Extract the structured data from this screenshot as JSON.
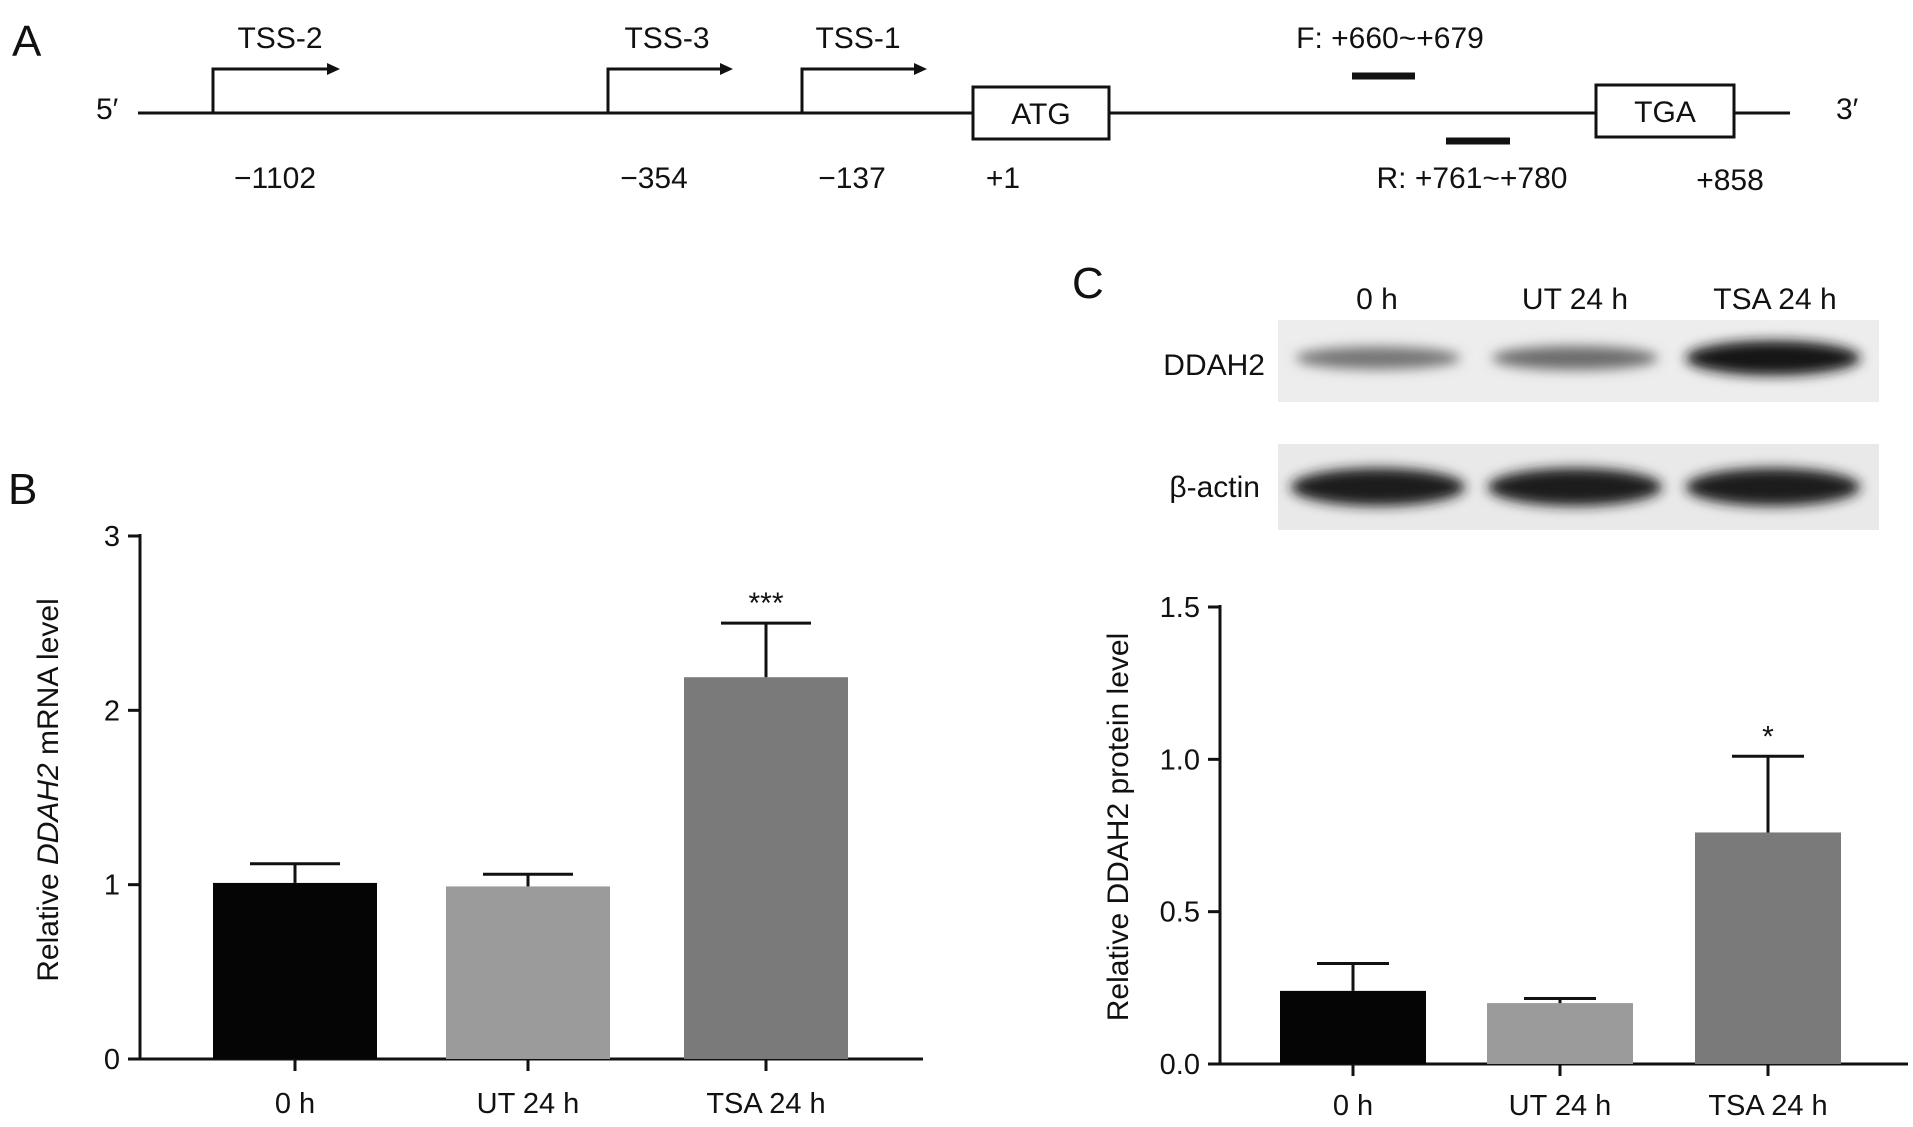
{
  "panels": {
    "a": {
      "letter": "A"
    },
    "b": {
      "letter": "B"
    },
    "c": {
      "letter": "C"
    }
  },
  "gene_map": {
    "end5": "5′",
    "end3": "3′",
    "tss": [
      {
        "label": "TSS-2",
        "position": "−1102"
      },
      {
        "label": "TSS-3",
        "position": "−354"
      },
      {
        "label": "TSS-1",
        "position": "−137"
      }
    ],
    "start_codon": {
      "label": "ATG",
      "position": "+1"
    },
    "stop_codon": {
      "label": "TGA",
      "position": "+858"
    },
    "forward_primer": "F: +660~+679",
    "reverse_primer": "R: +761~+780"
  },
  "western_blot": {
    "lanes": [
      "0 h",
      "UT 24 h",
      "TSA 24 h"
    ],
    "rows": [
      {
        "protein": "DDAH2",
        "band_intensity": [
          0.45,
          0.5,
          0.95
        ]
      },
      {
        "protein": "β-actin",
        "band_intensity": [
          0.92,
          0.92,
          0.93
        ]
      }
    ]
  },
  "colors": {
    "bar_0h": "#050505",
    "bar_ut": "#9b9b9b",
    "bar_tsa": "#7a7a7a",
    "axis": "#111111"
  },
  "chart_data": [
    {
      "id": "B",
      "type": "bar",
      "categories": [
        "0 h",
        "UT 24 h",
        "TSA 24 h"
      ],
      "values": [
        1.01,
        0.99,
        2.19
      ],
      "errors": [
        0.11,
        0.07,
        0.31
      ],
      "significance": [
        "",
        "",
        "***"
      ],
      "ylabel": {
        "prefix": "Relative ",
        "gene": "DDAH2",
        "suffix": " mRNA level"
      },
      "ylim": [
        0,
        3
      ],
      "yticks": [
        0,
        1,
        2,
        3
      ],
      "ytick_labels": [
        "0",
        "1",
        "2",
        "3"
      ],
      "grid": false
    },
    {
      "id": "C",
      "type": "bar",
      "categories": [
        "0 h",
        "UT 24 h",
        "TSA 24 h"
      ],
      "values": [
        0.24,
        0.2,
        0.76
      ],
      "errors": [
        0.09,
        0.015,
        0.25
      ],
      "significance": [
        "",
        "",
        "*"
      ],
      "ylabel": "Relative DDAH2 protein level",
      "ylim": [
        0,
        1.5
      ],
      "yticks": [
        0,
        0.5,
        1.0,
        1.5
      ],
      "ytick_labels": [
        "0.0",
        "0.5",
        "1.0",
        "1.5"
      ],
      "grid": false
    }
  ]
}
